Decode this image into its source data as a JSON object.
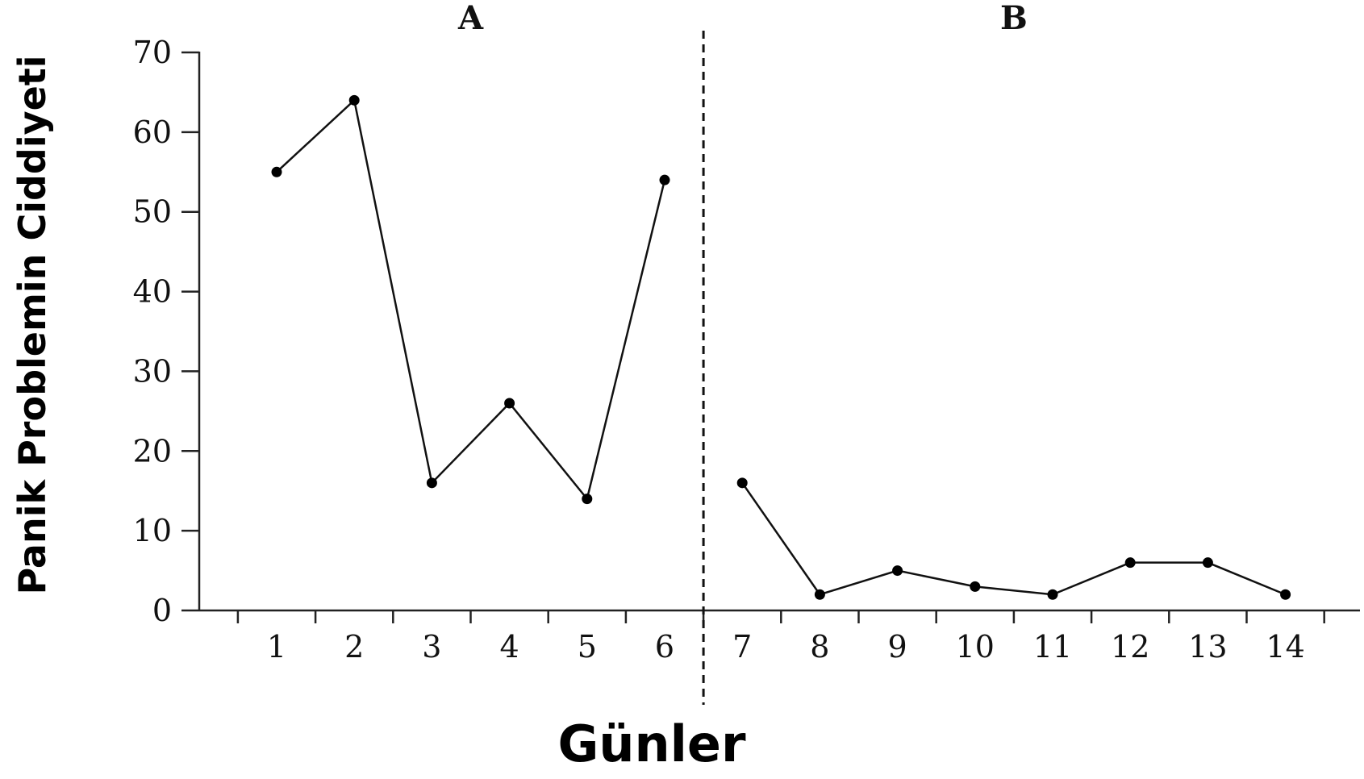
{
  "chart_data": {
    "type": "line",
    "ylabel": "Panik Problemin Ciddiyeti",
    "xlabel": "Günler",
    "ylim": [
      0,
      70
    ],
    "yticks": [
      0,
      10,
      20,
      30,
      40,
      50,
      60,
      70
    ],
    "xticks": [
      1,
      2,
      3,
      4,
      5,
      6,
      7,
      8,
      9,
      10,
      11,
      12,
      13,
      14
    ],
    "phase_divider_between": [
      6,
      7
    ],
    "phases": [
      {
        "name": "A",
        "x": [
          1,
          2,
          3,
          4,
          5,
          6
        ],
        "values": [
          55,
          64,
          16,
          26,
          14,
          54
        ]
      },
      {
        "name": "B",
        "x": [
          7,
          8,
          9,
          10,
          11,
          12,
          13,
          14
        ],
        "values": [
          16,
          2,
          5,
          3,
          2,
          6,
          6,
          2
        ]
      }
    ],
    "grid": false,
    "legend": "none"
  }
}
